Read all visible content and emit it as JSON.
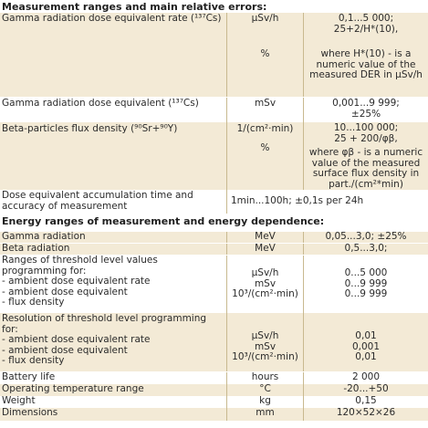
{
  "section1_title": "Measurement ranges and main relative errors:",
  "section2_title": "Energy ranges of measurement and energy dependence:",
  "r1": {
    "param": "Gamma radiation dose equivalent rate (¹³⁷Cs)",
    "unit1": "µSv/h",
    "unit2": "%",
    "v1": "0,1...5 000;",
    "v2": "25+2/H*(10),",
    "v3": "where H*(10) - is a",
    "v4": "numeric value of the",
    "v5": "measured DER in µSv/h"
  },
  "r2": {
    "param": "Gamma radiation dose equivalent (¹³⁷Cs)",
    "unit": "mSv",
    "v1": "0,001...9 999;",
    "v2": "±25%"
  },
  "r3": {
    "param": "Beta-particles flux density (⁹⁰Sr+⁹⁰Y)",
    "unit1": "1/(cm²·min)",
    "unit2": "%",
    "v1": "10...100 000;",
    "v2": "25 + 200/φβ,",
    "v3": "where φβ - is a numeric",
    "v4": "value of the measured",
    "v5": "surface flux density in",
    "v6": "part./(cm²*min)"
  },
  "r4": {
    "param1": "Dose equivalent accumulation time and",
    "param2": "accuracy of measurement",
    "value": "1min...100h; ±0,1s per 24h"
  },
  "r5": {
    "param": "Gamma radiation",
    "unit": "MeV",
    "value": "0,05...3,0; ±25%"
  },
  "r6": {
    "param": "Beta radiation",
    "unit": "MeV",
    "value": "0,5...3,0;"
  },
  "r7": {
    "l1": "Ranges of threshold level values",
    "l2": "programming for:",
    "l3": "- ambient dose equivalent rate",
    "l4": "- ambient dose equivalent",
    "l5": "- flux density",
    "u1": "µSv/h",
    "u2": "mSv",
    "u3": "10³/(cm²·min)",
    "v1": "0...5 000",
    "v2": "0...9 999",
    "v3": "0...9 999"
  },
  "r8": {
    "l1": "Resolution of threshold level programming",
    "l2": "for:",
    "l3": "- ambient dose equivalent rate",
    "l4": "- ambient dose equivalent",
    "l5": "- flux density",
    "u1": "µSv/h",
    "u2": "mSv",
    "u3": "10³/(cm²·min)",
    "v1": "0,01",
    "v2": "0,001",
    "v3": "0,01"
  },
  "r9": {
    "param": "Battery life",
    "unit": "hours",
    "value": "2 000"
  },
  "r10": {
    "param": "Operating temperature range",
    "unit": "°C",
    "value": "-20...+50"
  },
  "r11": {
    "param": "Weight",
    "unit": "kg",
    "value": "0,15"
  },
  "r12": {
    "param": "Dimensions",
    "unit": "mm",
    "value": "120×52×26"
  }
}
